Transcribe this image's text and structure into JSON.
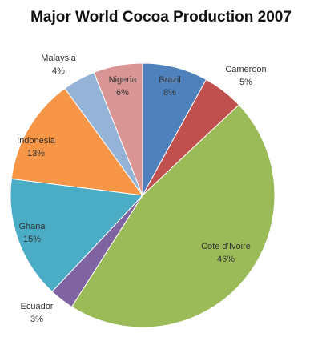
{
  "chart_data": {
    "type": "pie",
    "title": "Major World Cocoa Production 2007",
    "categories": [
      "Brazil",
      "Cameroon",
      "Cote d’Ivoire",
      "Ecuador",
      "Ghana",
      "Indonesia",
      "Malaysia",
      "Nigeria"
    ],
    "values": [
      8,
      5,
      46,
      3,
      15,
      13,
      4,
      6
    ],
    "value_labels": [
      "8%",
      "5%",
      "46%",
      "3%",
      "15%",
      "13%",
      "4%",
      "6%"
    ],
    "colors": [
      "#4f81bd",
      "#c0504d",
      "#9bbb59",
      "#8064a2",
      "#4bacc6",
      "#f79646",
      "#95b3d7",
      "#d99694"
    ]
  }
}
